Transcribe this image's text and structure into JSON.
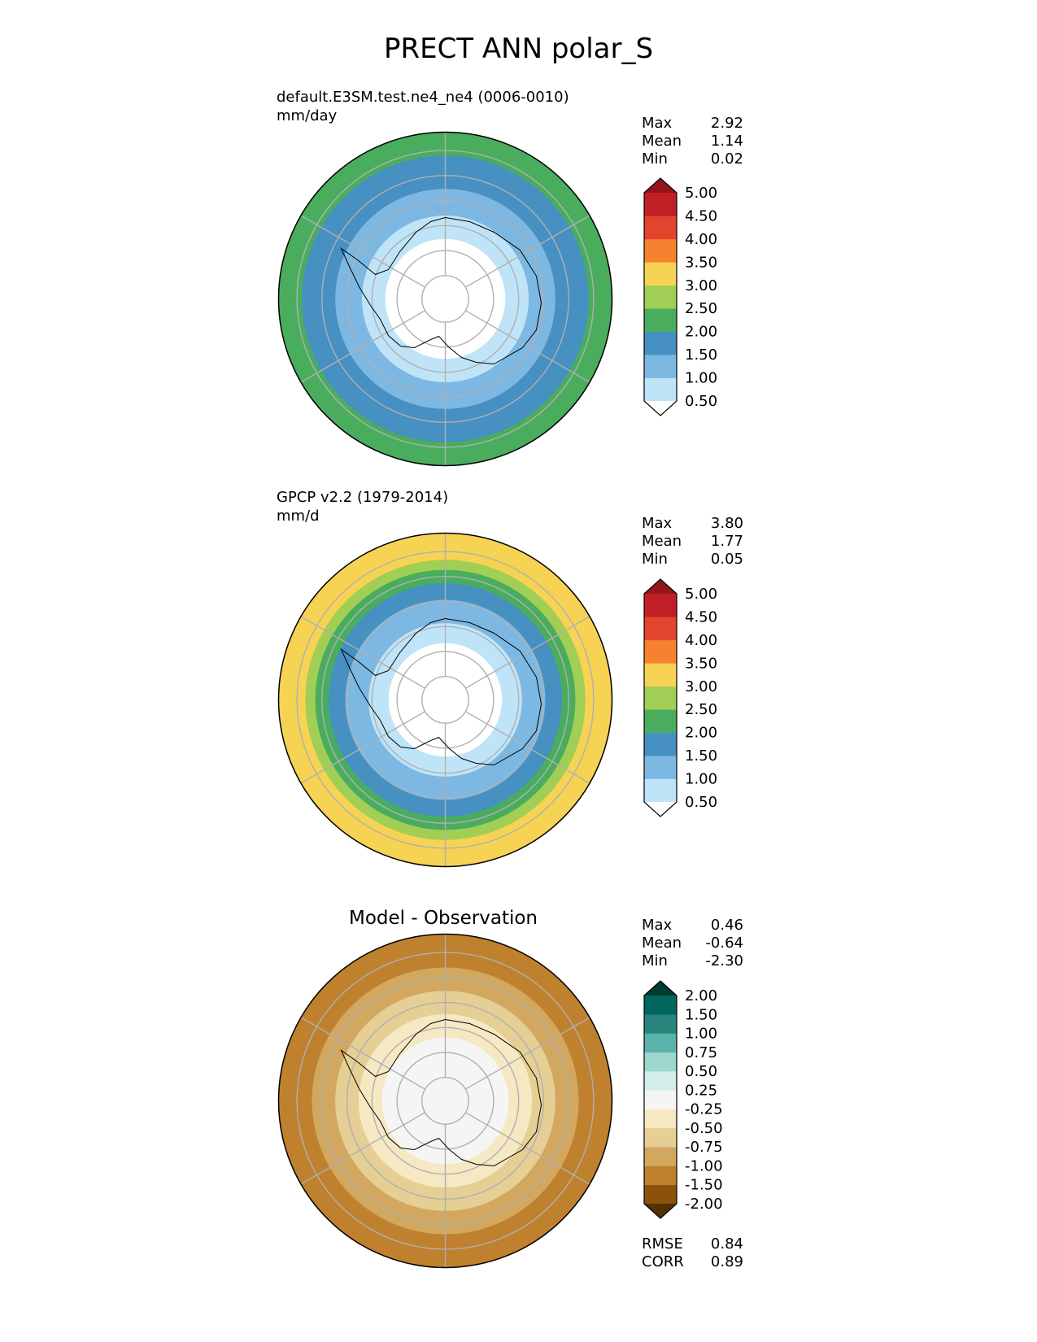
{
  "title": "PRECT ANN polar_S",
  "panels": [
    {
      "name": "test",
      "line1": "default.E3SM.test.ne4_ne4 (0006-0010)",
      "line2": "mm/day",
      "stats": {
        "max_label": "Max",
        "max": "2.92",
        "mean_label": "Mean",
        "mean": "1.14",
        "min_label": "Min",
        "min": "0.02"
      }
    },
    {
      "name": "reference",
      "line1": "GPCP v2.2 (1979-2014)",
      "line2": "mm/d",
      "stats": {
        "max_label": "Max",
        "max": "3.80",
        "mean_label": "Mean",
        "mean": "1.77",
        "min_label": "Min",
        "min": "0.05"
      }
    },
    {
      "name": "difference",
      "title": "Model - Observation",
      "stats": {
        "max_label": "Max",
        "max": "0.46",
        "mean_label": "Mean",
        "mean": "-0.64",
        "min_label": "Min",
        "min": "-2.30"
      },
      "metrics": {
        "rmse_label": "RMSE",
        "rmse": "0.84",
        "corr_label": "CORR",
        "corr": "0.89"
      }
    }
  ],
  "chart_data": [
    {
      "type": "heatmap",
      "projection": "south polar stereographic",
      "title": "default.E3SM.test.ne4_ne4 (0006-0010)",
      "units": "mm/day",
      "colorbar": {
        "levels": [
          "0.50",
          "1.00",
          "1.50",
          "2.00",
          "2.50",
          "3.00",
          "3.50",
          "4.00",
          "4.50",
          "5.00"
        ],
        "colors": [
          "#ffffff",
          "#bfe4f8",
          "#7db8e3",
          "#4690c2",
          "#4aad5e",
          "#a1cf55",
          "#f7d354",
          "#f6822f",
          "#e2442e",
          "#c11f26",
          "#931519"
        ],
        "extend": "both"
      },
      "field": "rings",
      "rings": [
        {
          "r_max": 0.36,
          "level": 0
        },
        {
          "r_max": 0.5,
          "level": 1
        },
        {
          "r_max": 0.66,
          "level": 2
        },
        {
          "r_max": 0.86,
          "level": 3
        },
        {
          "r_max": 1.0,
          "level": 4
        }
      ]
    },
    {
      "type": "heatmap",
      "projection": "south polar stereographic",
      "title": "GPCP v2.2 (1979-2014)",
      "units": "mm/d",
      "colorbar": {
        "levels": [
          "0.50",
          "1.00",
          "1.50",
          "2.00",
          "2.50",
          "3.00",
          "3.50",
          "4.00",
          "4.50",
          "5.00"
        ],
        "colors": [
          "#ffffff",
          "#bfe4f8",
          "#7db8e3",
          "#4690c2",
          "#4aad5e",
          "#a1cf55",
          "#f7d354",
          "#f6822f",
          "#e2442e",
          "#c11f26",
          "#931519"
        ],
        "extend": "both"
      },
      "field": "rings",
      "rings": [
        {
          "r_max": 0.34,
          "level": 0
        },
        {
          "r_max": 0.46,
          "level": 1
        },
        {
          "r_max": 0.6,
          "level": 2
        },
        {
          "r_max": 0.7,
          "level": 3
        },
        {
          "r_max": 0.78,
          "level": 4
        },
        {
          "r_max": 0.84,
          "level": 5
        },
        {
          "r_max": 1.0,
          "level": 6
        }
      ]
    },
    {
      "type": "heatmap",
      "projection": "south polar stereographic",
      "title": "Model - Observation",
      "colorbar": {
        "levels": [
          "-2.00",
          "-1.50",
          "-1.00",
          "-0.75",
          "-0.50",
          "-0.25",
          "0.25",
          "0.50",
          "0.75",
          "1.00",
          "1.50",
          "2.00"
        ],
        "colors": [
          "#543005",
          "#8c510a",
          "#bf812d",
          "#d2a760",
          "#e5cf94",
          "#f6e8c3",
          "#f5f5f5",
          "#d3eee9",
          "#9cd6cc",
          "#5bb2a8",
          "#2a857e",
          "#01665e",
          "#003c30"
        ],
        "extend": "both"
      },
      "field": "rings",
      "rings": [
        {
          "r_max": 0.38,
          "level": 6
        },
        {
          "r_max": 0.52,
          "level": 5
        },
        {
          "r_max": 0.66,
          "level": 4
        },
        {
          "r_max": 0.8,
          "level": 3
        },
        {
          "r_max": 1.0,
          "level": 2
        }
      ]
    }
  ]
}
